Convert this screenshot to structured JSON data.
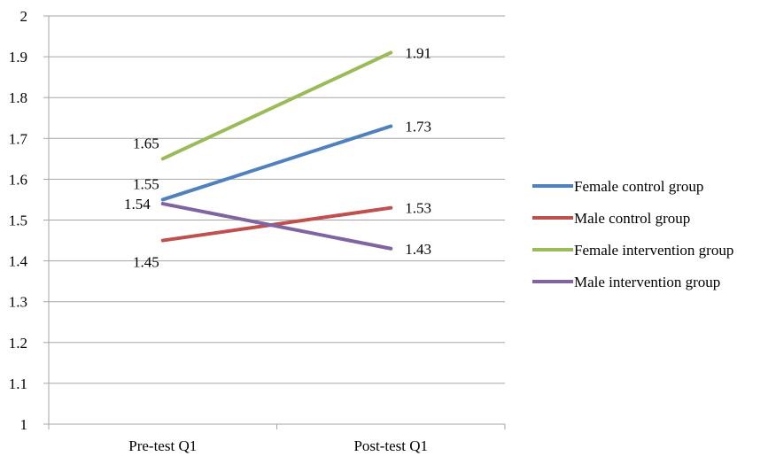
{
  "chart_data": {
    "type": "line",
    "categories": [
      "Pre-test Q1",
      "Post-test Q1"
    ],
    "ylim": [
      1,
      2
    ],
    "yticks": [
      "1",
      "1.1",
      "1.2",
      "1.3",
      "1.4",
      "1.5",
      "1.6",
      "1.7",
      "1.8",
      "1.9",
      "2"
    ],
    "grid": true,
    "legend_position": "right",
    "series": [
      {
        "name": "Female control group",
        "color": "#4F81BD",
        "values": [
          1.55,
          1.73
        ],
        "labels": [
          "1.55",
          "1.73"
        ]
      },
      {
        "name": "Male control group",
        "color": "#C0504D",
        "values": [
          1.45,
          1.53
        ],
        "labels": [
          "1.45",
          "1.53"
        ]
      },
      {
        "name": "Female intervention group",
        "color": "#9BBB59",
        "values": [
          1.65,
          1.91
        ],
        "labels": [
          "1.65",
          "1.91"
        ]
      },
      {
        "name": "Male intervention group",
        "color": "#8064A2",
        "values": [
          1.54,
          1.43
        ],
        "labels": [
          "1.54",
          "1.43"
        ]
      }
    ]
  }
}
